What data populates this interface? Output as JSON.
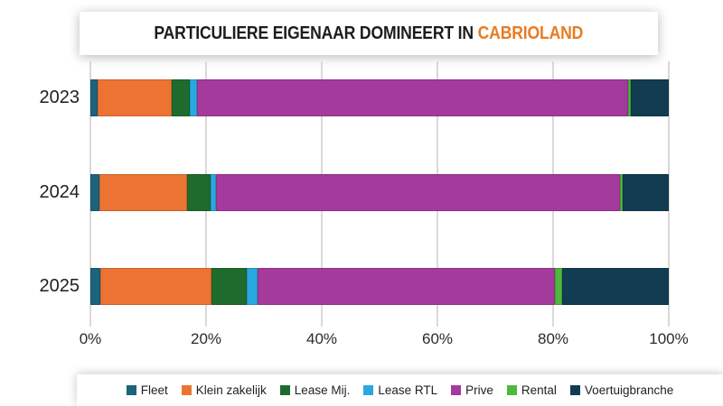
{
  "title": {
    "main": "PARTICULIERE EIGENAAR DOMINEERT IN",
    "accent": "CABRIOLAND"
  },
  "colors": {
    "title_accent": "#e87c22",
    "grid": "#d9d9d9",
    "text": "#1f1f1f",
    "background": "#ffffff"
  },
  "chart_data": {
    "type": "bar",
    "stacked": true,
    "orientation": "horizontal",
    "title": "PARTICULIERE EIGENAAR DOMINEERT IN CABRIOLAND",
    "categories": [
      "2023",
      "2024",
      "2025"
    ],
    "series": [
      {
        "name": "Fleet",
        "color": "#1c637c",
        "values": [
          1.3,
          1.5,
          1.7
        ]
      },
      {
        "name": "Klein zakelijk",
        "color": "#ed7333",
        "values": [
          12.8,
          15.2,
          19.2
        ]
      },
      {
        "name": "Lease Mij.",
        "color": "#1f6b2d",
        "values": [
          3.1,
          4.1,
          6.2
        ]
      },
      {
        "name": "Lease RTL",
        "color": "#29a9e0",
        "values": [
          1.3,
          0.9,
          1.8
        ]
      },
      {
        "name": "Prive",
        "color": "#a43a9b",
        "values": [
          74.4,
          69.9,
          51.4
        ]
      },
      {
        "name": "Rental",
        "color": "#4fb83e",
        "values": [
          0.5,
          0.5,
          1.2
        ]
      },
      {
        "name": "Voertuigbranche",
        "color": "#123c52",
        "values": [
          6.6,
          7.9,
          18.5
        ]
      }
    ],
    "x_ticks": [
      "0%",
      "20%",
      "40%",
      "60%",
      "80%",
      "100%"
    ],
    "xlim": [
      0,
      100
    ],
    "xlabel": "",
    "ylabel": "",
    "grid": "vertical",
    "legend_position": "bottom"
  }
}
